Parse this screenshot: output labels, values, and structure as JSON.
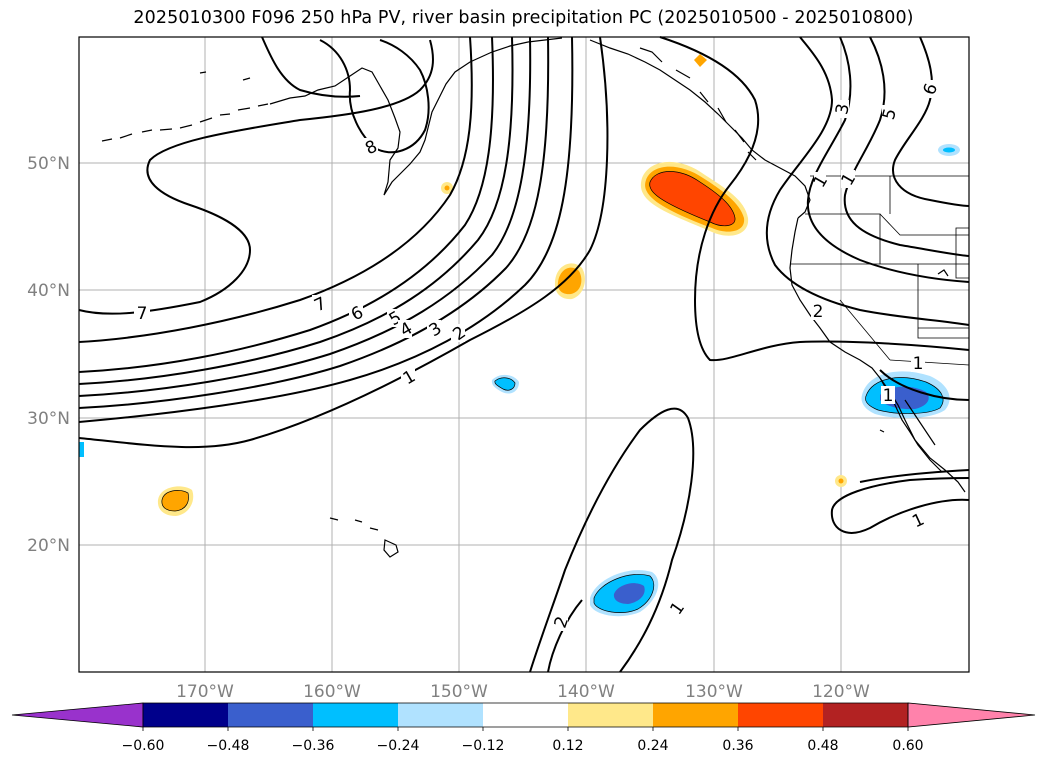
{
  "title": "2025010300 F096 250 hPa PV, river basin precipitation PC (2025010500 - 2025010800)",
  "map": {
    "lat_labels": [
      "50°N",
      "40°N",
      "30°N",
      "20°N"
    ],
    "lon_labels": [
      "170°W",
      "160°W",
      "150°W",
      "140°W",
      "130°W",
      "120°W"
    ],
    "gridlines": true,
    "tick_label_color": "#808080"
  },
  "pv_contour_labels": [
    "8",
    "7",
    "7",
    "6",
    "5",
    "4",
    "3",
    "2",
    "1",
    "1",
    "1",
    "1",
    "1",
    "2",
    "2",
    "1",
    "3",
    "5",
    "6",
    "1"
  ],
  "colorbar": {
    "tick_labels": [
      "−0.60",
      "−0.48",
      "−0.36",
      "−0.24",
      "−0.12",
      "0.12",
      "0.24",
      "0.36",
      "0.48",
      "0.60"
    ],
    "colors": [
      "#9932cc",
      "#00008b",
      "#3a5fcd",
      "#00bfff",
      "#b0e2ff",
      "#ffffff",
      "#ffe88a",
      "#ffa500",
      "#ff4500",
      "#b22222",
      "#ff82ab"
    ]
  }
}
